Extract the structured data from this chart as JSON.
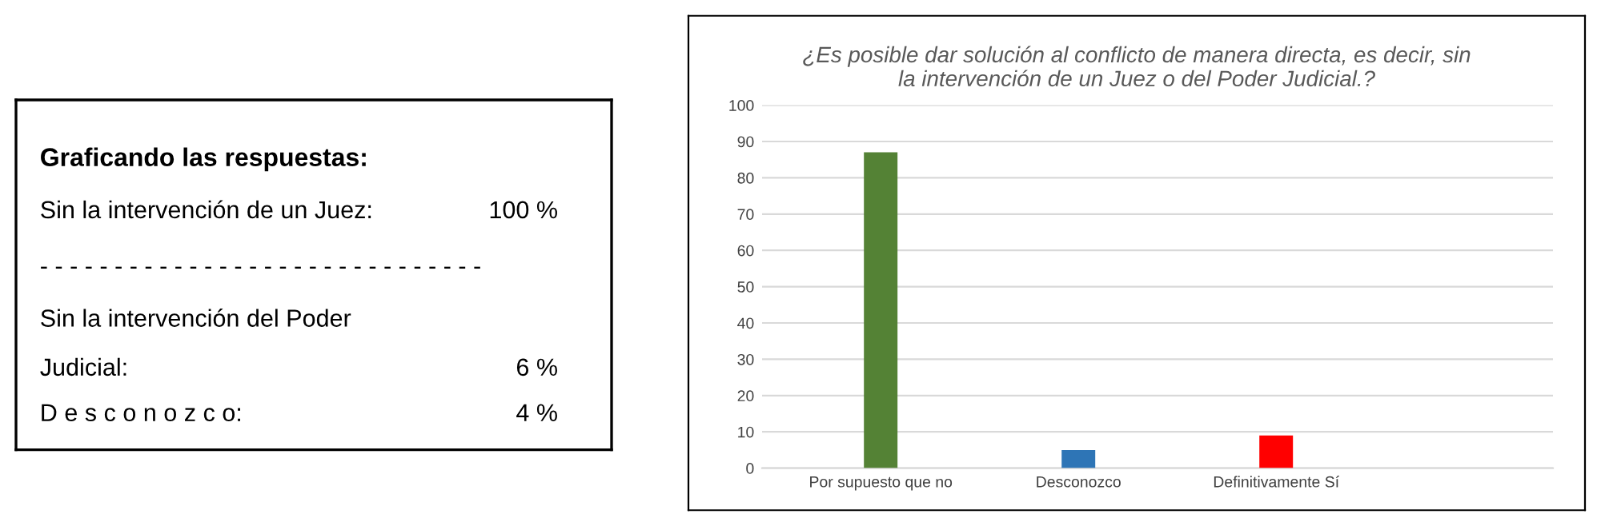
{
  "chart_data": [
    {
      "type": "other",
      "title": "Graficando las respuestas:",
      "annotations": [
        "Sin la intervención de un Juez:",
        "100 %",
        "- - - - - - - - - - - - - - - - - - - - - - - - - - - - - -",
        "Sin la intervención del Poder",
        "Judicial:",
        "6 %",
        "D e s c o n o z c o:",
        "4 %"
      ]
    },
    {
      "type": "bar",
      "title": "¿Es posible dar solución al conflicto de manera directa, es decir, sin\nla intervención de un Juez o del Poder Judicial.?",
      "categories": [
        "Por supuesto que no",
        "Desconozco",
        "Definitivamente Sí"
      ],
      "values": [
        87,
        5,
        9
      ],
      "colors": [
        "#548235",
        "#2e75b6",
        "#ff0000"
      ],
      "ylim": [
        0,
        100
      ],
      "yticks": [
        0,
        10,
        20,
        30,
        40,
        50,
        60,
        70,
        80,
        90,
        100
      ],
      "grid": "y"
    }
  ]
}
